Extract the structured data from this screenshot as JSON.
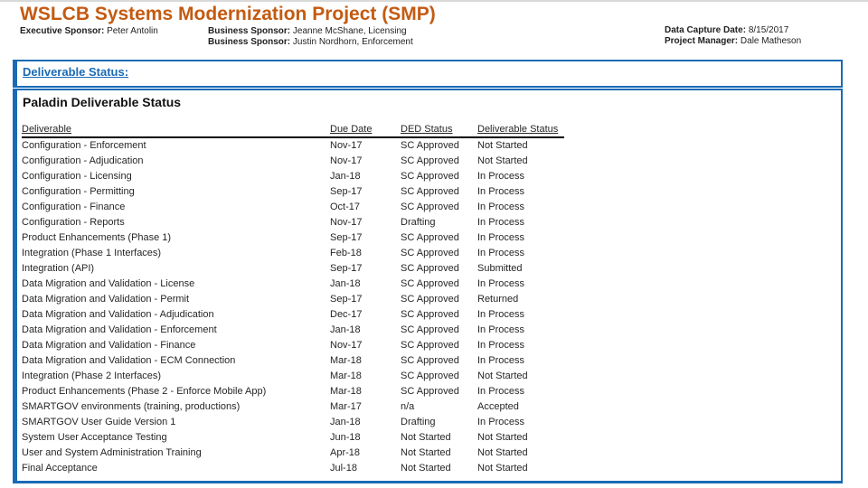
{
  "slide": {
    "title": "WSLCB Systems Modernization Project (SMP)",
    "header": {
      "executive_sponsor_label": "Executive Sponsor:",
      "executive_sponsor_value": "Peter Antolin",
      "business_sponsor_1_label": "Business Sponsor:",
      "business_sponsor_1_value": "Jeanne McShane, Licensing",
      "business_sponsor_2_label": "Business Sponsor:",
      "business_sponsor_2_value": "Justin Nordhorn, Enforcement",
      "data_capture_label": "Data Capture Date:",
      "data_capture_value": "8/15/2017",
      "project_manager_label": "Project Manager:",
      "project_manager_value": "Dale Matheson"
    },
    "section_heading": "Deliverable Status:",
    "table_title": "Paladin Deliverable Status",
    "table": {
      "columns": [
        "Deliverable",
        "Due Date",
        "DED Status",
        "Deliverable Status"
      ],
      "rows": [
        [
          "Configuration - Enforcement",
          "Nov-17",
          "SC Approved",
          "Not Started"
        ],
        [
          "Configuration - Adjudication",
          "Nov-17",
          "SC Approved",
          "Not Started"
        ],
        [
          "Configuration - Licensing",
          "Jan-18",
          "SC Approved",
          "In Process"
        ],
        [
          "Configuration - Permitting",
          "Sep-17",
          "SC Approved",
          "In Process"
        ],
        [
          "Configuration - Finance",
          "Oct-17",
          "SC Approved",
          "In Process"
        ],
        [
          "Configuration - Reports",
          "Nov-17",
          "Drafting",
          "In Process"
        ],
        [
          "Product Enhancements (Phase 1)",
          "Sep-17",
          "SC Approved",
          "In Process"
        ],
        [
          "Integration (Phase 1 Interfaces)",
          "Feb-18",
          "SC Approved",
          "In Process"
        ],
        [
          "Integration (API)",
          "Sep-17",
          "SC Approved",
          "Submitted"
        ],
        [
          "Data Migration and Validation - License",
          "Jan-18",
          "SC Approved",
          "In Process"
        ],
        [
          "Data Migration and Validation - Permit",
          "Sep-17",
          "SC Approved",
          "Returned"
        ],
        [
          "Data Migration and Validation - Adjudication",
          "Dec-17",
          "SC Approved",
          "In Process"
        ],
        [
          "Data Migration and Validation - Enforcement",
          "Jan-18",
          "SC Approved",
          "In Process"
        ],
        [
          "Data Migration and Validation - Finance",
          "Nov-17",
          "SC Approved",
          "In Process"
        ],
        [
          "Data Migration and Validation - ECM Connection",
          "Mar-18",
          "SC Approved",
          "In Process"
        ],
        [
          "Integration (Phase 2 Interfaces)",
          "Mar-18",
          "SC Approved",
          "Not Started"
        ],
        [
          "Product Enhancements (Phase 2 - Enforce Mobile App)",
          "Mar-18",
          "SC Approved",
          "In Process"
        ],
        [
          "SMARTGOV environments (training, productions)",
          "Mar-17",
          "n/a",
          "Accepted"
        ],
        [
          "SMARTGOV User Guide Version 1",
          "Jan-18",
          "Drafting",
          "In Process"
        ],
        [
          "System User Acceptance Testing",
          "Jun-18",
          "Not Started",
          "Not Started"
        ],
        [
          "User and System Administration Training",
          "Apr-18",
          "Not Started",
          "Not Started"
        ],
        [
          "Final Acceptance",
          "Jul-18",
          "Not Started",
          "Not Started"
        ]
      ]
    },
    "colors": {
      "accent_orange": "#C45A11",
      "accent_blue": "#1A6AB5",
      "body_text": "#262626"
    }
  }
}
